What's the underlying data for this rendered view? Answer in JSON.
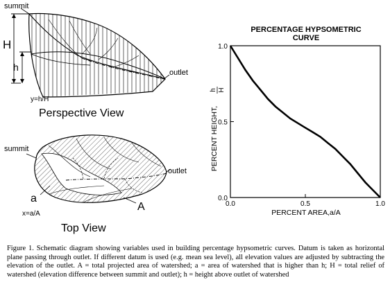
{
  "perspective": {
    "summit": "summit",
    "outlet": "outlet",
    "H": "H",
    "h": "h",
    "ratio": "y=h/H",
    "title": "Perspective View"
  },
  "top_view": {
    "summit": "summit",
    "outlet": "outlet",
    "a": "a",
    "A": "A",
    "ratio": "x=a/A",
    "title": "Top View"
  },
  "chart_data": {
    "type": "line",
    "title": "PERCENTAGE HYPSOMETRIC CURVE",
    "title_lines": [
      "PERCENTAGE HYPSOMETRIC",
      "CURVE"
    ],
    "xlabel": "PERCENT AREA,a/A",
    "ylabel": "PERCENT HEIGHT,",
    "ylabel_fraction": {
      "numerator": "h",
      "denominator": "H"
    },
    "xlim": [
      0,
      1
    ],
    "ylim": [
      0,
      1
    ],
    "x_ticks": [
      "0.0",
      "0.5",
      "1.0"
    ],
    "y_ticks": [
      "0.0",
      "0.5",
      "1.0"
    ],
    "grid": false,
    "series": [
      {
        "x": [
          0.0,
          0.05,
          0.1,
          0.15,
          0.2,
          0.25,
          0.3,
          0.35,
          0.4,
          0.45,
          0.5,
          0.55,
          0.6,
          0.65,
          0.7,
          0.75,
          0.8,
          0.85,
          0.9,
          0.95,
          1.0
        ],
        "y": [
          1.0,
          0.92,
          0.84,
          0.77,
          0.71,
          0.65,
          0.6,
          0.56,
          0.52,
          0.49,
          0.46,
          0.43,
          0.4,
          0.36,
          0.32,
          0.27,
          0.22,
          0.16,
          0.1,
          0.05,
          0.0
        ]
      }
    ]
  },
  "caption": "Figure 1. Schematic diagram showing variables used in building percentage hypsometric curves. Datum is taken as horizontal plane passing through outlet. If different datum is used (e.g. mean sea level), all elevation values are adjusted by subtracting the elevation of the outlet. A = total projected area of watershed; a = area of watershed that is higher than h; H = total relief of watershed (elevation difference between summit and outlet); h = height above outlet of watershed"
}
